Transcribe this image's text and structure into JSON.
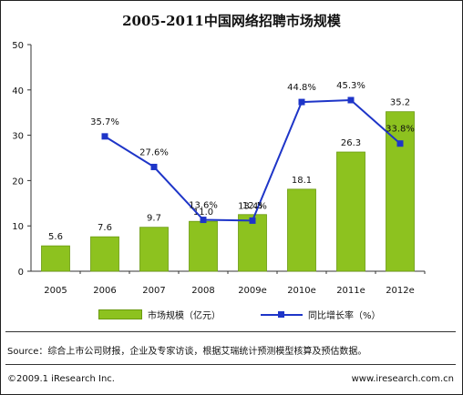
{
  "title": "2005-2011中国网络招聘市场规模",
  "chart_data": {
    "type": "bar",
    "categories": [
      "2005",
      "2006",
      "2007",
      "2008",
      "2009e",
      "2010e",
      "2011e",
      "2012e"
    ],
    "series": [
      {
        "name": "市场规模（亿元）",
        "type": "bar",
        "values": [
          5.6,
          7.6,
          9.7,
          11.0,
          12.5,
          18.1,
          26.3,
          35.2
        ],
        "labels": [
          "5.6",
          "7.6",
          "9.7",
          "11.0",
          "12.5",
          "18.1",
          "26.3",
          "35.2"
        ]
      },
      {
        "name": "同比增长率（%）",
        "type": "line",
        "values": [
          null,
          35.7,
          27.6,
          13.6,
          13.4,
          44.8,
          45.3,
          33.8
        ],
        "labels": [
          "",
          "35.7%",
          "27.6%",
          "13.6%",
          "13.4%",
          "44.8%",
          "45.3%",
          "33.8%"
        ]
      }
    ],
    "ylim": [
      0,
      50
    ],
    "yticks": [
      "0",
      "10",
      "20",
      "30",
      "40",
      "50"
    ],
    "grid": false,
    "legend": "bottom"
  },
  "colors": {
    "bar": "#8dc21f",
    "bar_edge": "#6a9a10",
    "line": "#1e35c8"
  },
  "legend": {
    "bar_label": "市场规模（亿元）",
    "line_label": "同比增长率（%）"
  },
  "source": "Source：综合上市公司财报，企业及专家访谈，根据艾瑞统计预测模型核算及预估数据。",
  "footer_left": "©2009.1 iResearch Inc.",
  "footer_right": "www.iresearch.com.cn"
}
